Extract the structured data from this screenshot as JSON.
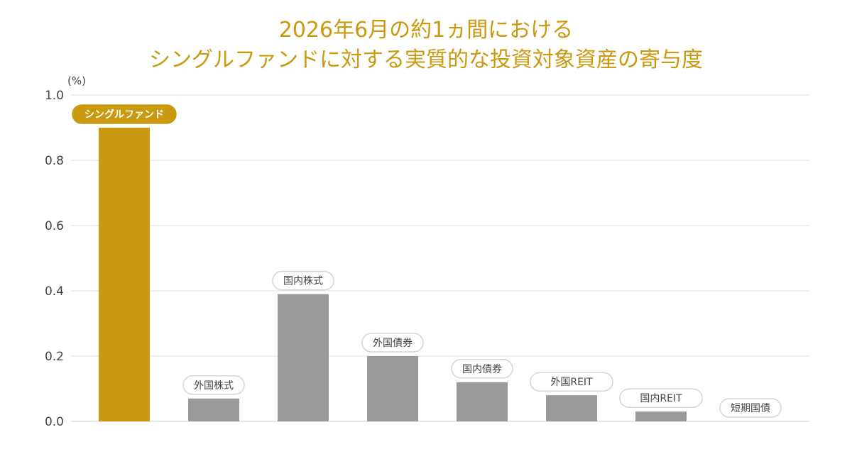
{
  "chart_data": {
    "type": "bar",
    "title_lines": [
      "2026年6月の約1ヵ間における",
      "シングルファンドに対する実質的な投資対象資産の寄与度"
    ],
    "ylabel": "(%)",
    "xlabel": "",
    "ylim": [
      0,
      1.0
    ],
    "yticks": [
      "0.0",
      "0.2",
      "0.4",
      "0.6",
      "0.8",
      "1.0"
    ],
    "grid": true,
    "categories": [
      "シングルファンド",
      "外国株式",
      "国内株式",
      "外国債券",
      "国内債券",
      "外国REIT",
      "国内REIT",
      "短期国債"
    ],
    "values": [
      0.9,
      0.07,
      0.39,
      0.2,
      0.12,
      0.08,
      0.03,
      0.0
    ],
    "highlight_index": 0,
    "colors": {
      "highlight": "#c9990f",
      "bar": "#999999",
      "grid": "#e3e3e3",
      "title": "#c9990f",
      "pill_border": "#d5d5d5"
    }
  }
}
